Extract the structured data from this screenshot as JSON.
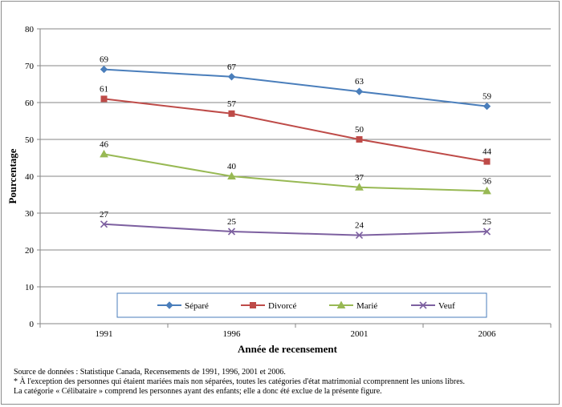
{
  "chart_data": {
    "type": "line",
    "categories": [
      "1991",
      "1996",
      "2001",
      "2006"
    ],
    "series": [
      {
        "name": "Séparé",
        "values": [
          69,
          67,
          63,
          59
        ],
        "color": "#4a7ebb",
        "marker": "diamond"
      },
      {
        "name": "Divorcé",
        "values": [
          61,
          57,
          50,
          44
        ],
        "color": "#be4b48",
        "marker": "square"
      },
      {
        "name": "Marié",
        "values": [
          46,
          40,
          37,
          36
        ],
        "color": "#98b954",
        "marker": "triangle"
      },
      {
        "name": "Veuf",
        "values": [
          27,
          25,
          24,
          25
        ],
        "color": "#7d60a0",
        "marker": "x"
      }
    ],
    "title": "",
    "xlabel": "Année de recensement",
    "ylabel": "Pourcentage",
    "ylim": [
      0,
      80
    ],
    "yticks": [
      0,
      10,
      20,
      30,
      40,
      50,
      60,
      70,
      80
    ],
    "grid": "horizontal",
    "legend_position": "bottom-inside",
    "data_labels": true
  },
  "notes": {
    "source": "Source de données :  Statistique Canada,  Recensements de 1991, 1996, 2001 et 2006.",
    "footnote_1": "* À l'exception des personnes qui étaient mariées mais non séparées, toutes les catégories d'état matrimonial ccomprennent les unions libres.",
    "footnote_2": "La catégorie « Célibataire » comprend les personnes ayant des enfants; elle a donc été exclue de la présente figure."
  }
}
